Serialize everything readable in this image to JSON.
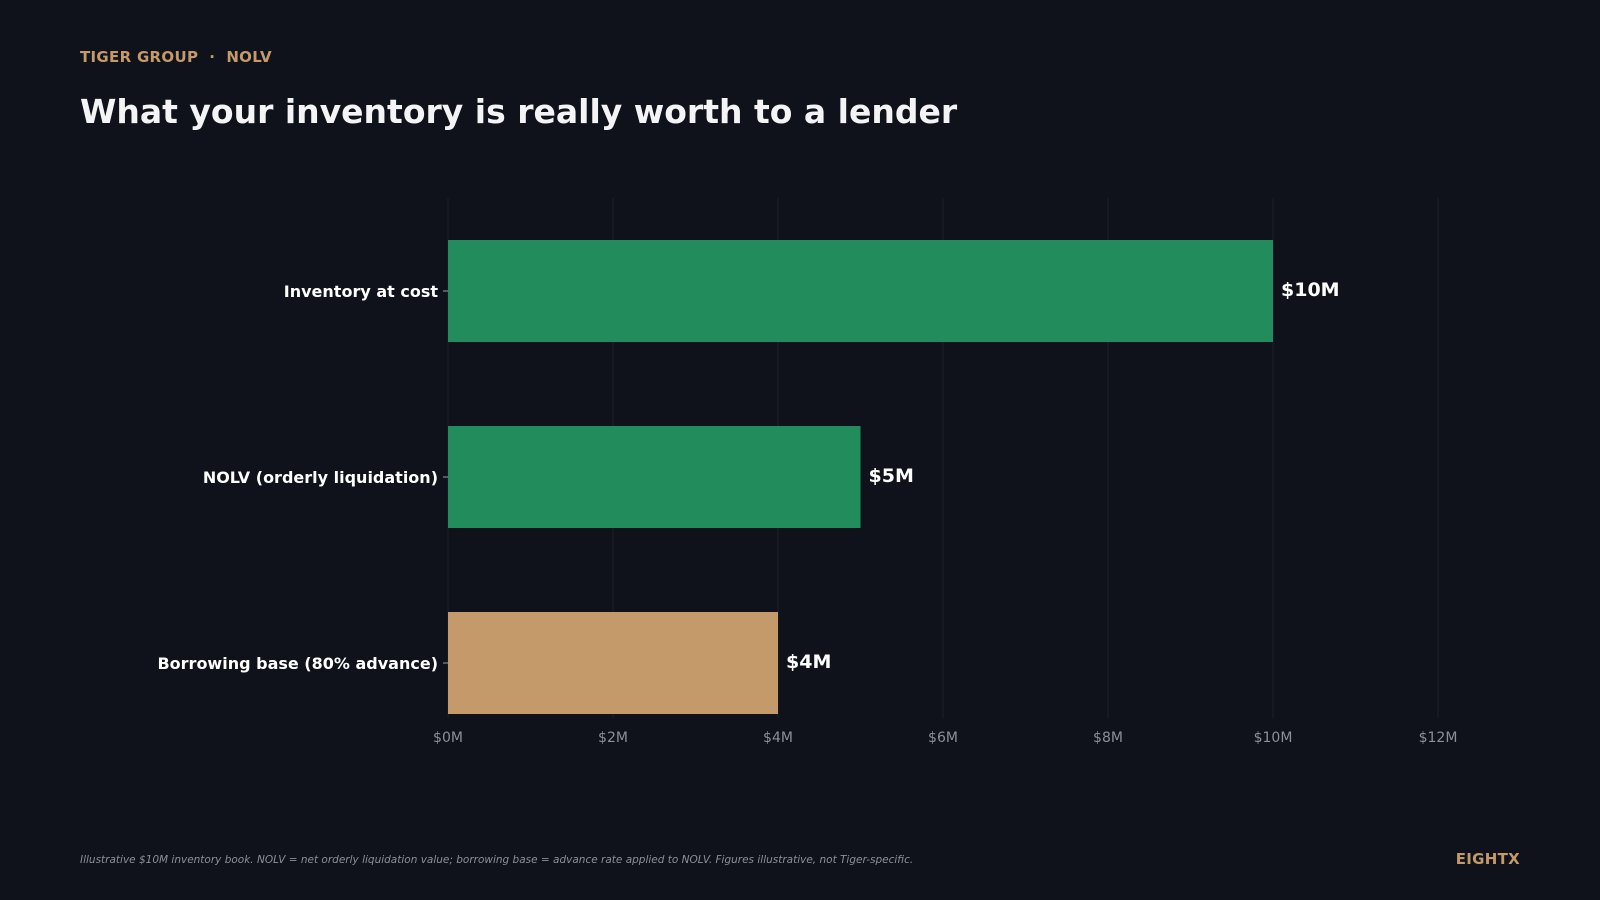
{
  "header": {
    "eyebrow_left": "TIGER GROUP",
    "eyebrow_separator": "·",
    "eyebrow_right": "NOLV",
    "title": "What your inventory is really worth to a lender"
  },
  "chart_data": {
    "type": "bar",
    "orientation": "horizontal",
    "categories": [
      "Inventory at cost",
      "NOLV (orderly liquidation)",
      "Borrowing base (80% advance)"
    ],
    "values": [
      10,
      5,
      4
    ],
    "value_labels": [
      "$10M",
      "$5M",
      "$4M"
    ],
    "bar_colors": [
      "#228c5c",
      "#228c5c",
      "#c59a6a"
    ],
    "xlim": [
      0,
      12
    ],
    "x_ticks": [
      0,
      2,
      4,
      6,
      8,
      10,
      12
    ],
    "x_tick_labels": [
      "$0M",
      "$2M",
      "$4M",
      "$6M",
      "$8M",
      "$10M",
      "$12M"
    ],
    "grid": "vertical",
    "legend": "none"
  },
  "footer": {
    "note": "Illustrative $10M inventory book. NOLV = net orderly liquidation value; borrowing base = advance rate applied to NOLV. Figures illustrative, not Tiger-specific.",
    "brand": "EIGHTX"
  },
  "colors": {
    "background": "#0f121a",
    "accent": "#c59a6a",
    "green": "#228c5c",
    "grid": "#1c2029",
    "tick_text": "#8a8f99"
  }
}
